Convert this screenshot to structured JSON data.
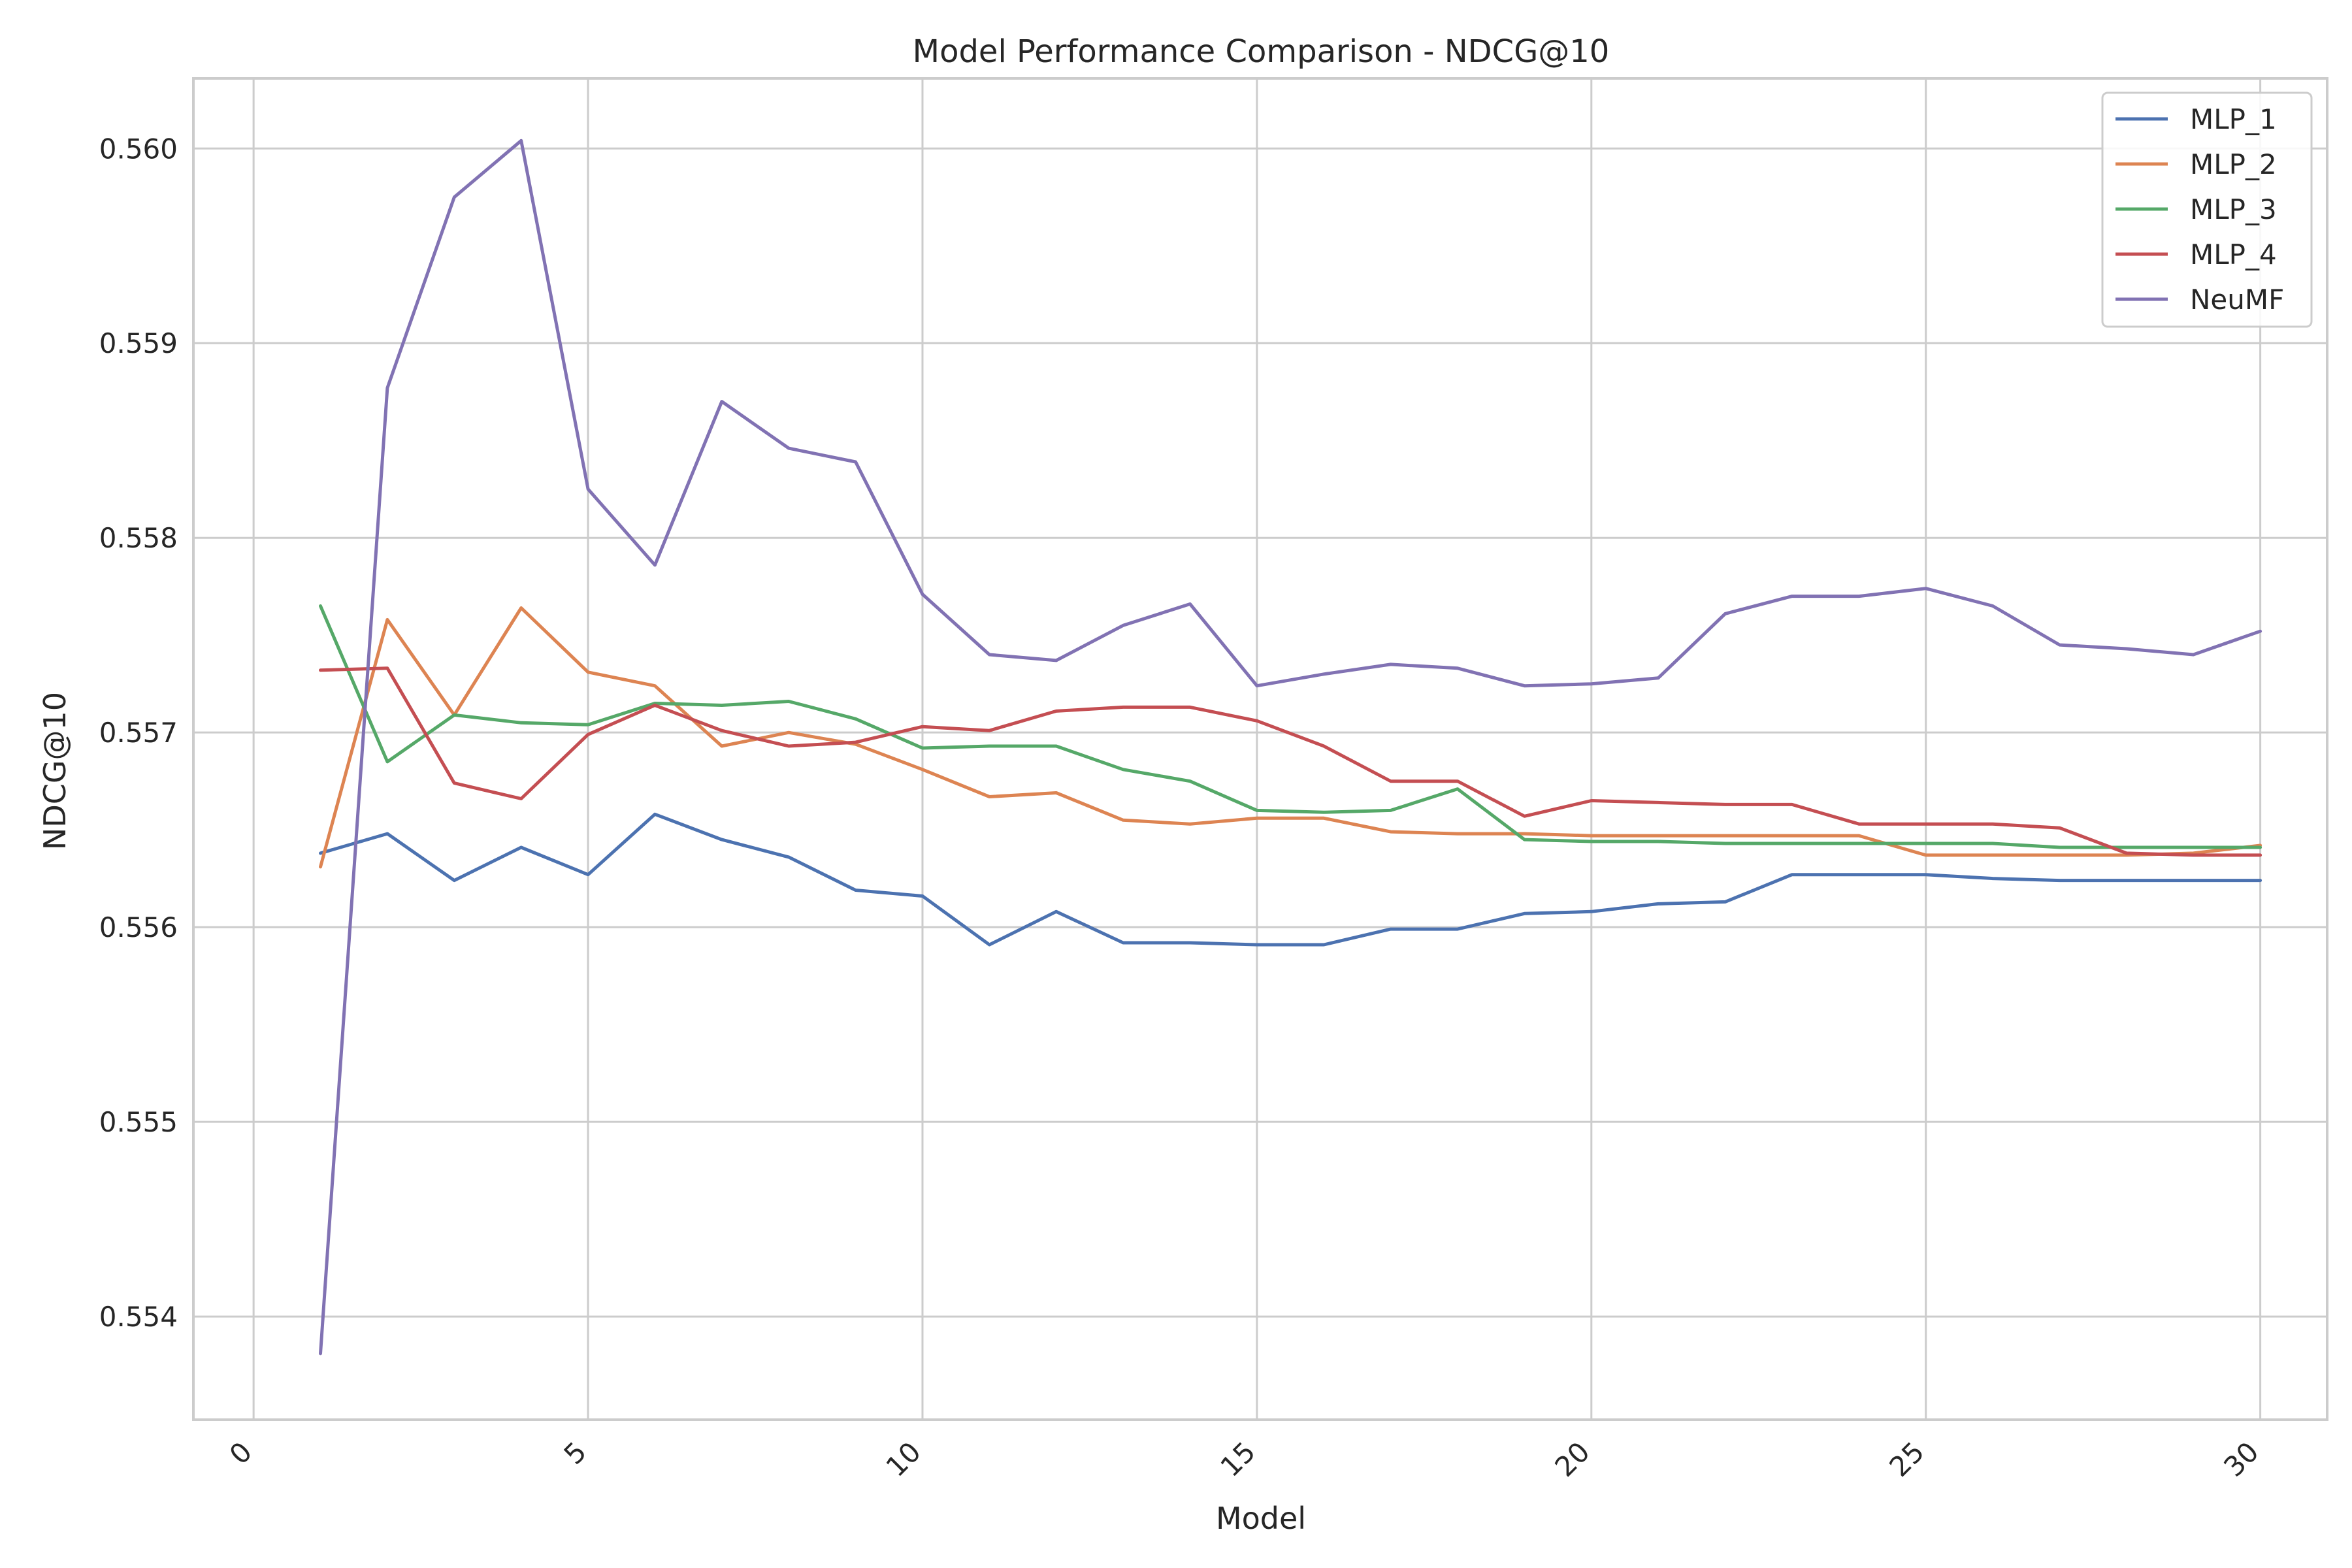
{
  "chart_data": {
    "type": "line",
    "title": "Model Performance Comparison - NDCG@10",
    "xlabel": "Model",
    "ylabel": "NDCG@10",
    "xlim": [
      -0.9,
      31.0
    ],
    "ylim": [
      0.55347,
      0.56036
    ],
    "xticks": [
      0,
      5,
      10,
      15,
      20,
      25,
      30
    ],
    "xtick_labels": [
      "0",
      "5",
      "10",
      "15",
      "20",
      "25",
      "30"
    ],
    "xtick_rotation": 45,
    "yticks": [
      0.554,
      0.555,
      0.556,
      0.557,
      0.558,
      0.559,
      0.56
    ],
    "ytick_labels": [
      "0.554",
      "0.555",
      "0.556",
      "0.557",
      "0.558",
      "0.559",
      "0.560"
    ],
    "grid": true,
    "legend_position": "top-right",
    "x": [
      1,
      2,
      3,
      4,
      5,
      6,
      7,
      8,
      9,
      10,
      11,
      12,
      13,
      14,
      15,
      16,
      17,
      18,
      19,
      20,
      21,
      22,
      23,
      24,
      25,
      26,
      27,
      28,
      29,
      30
    ],
    "series": [
      {
        "name": "MLP_1",
        "color": "#4c72b0",
        "values": [
          0.55638,
          0.55648,
          0.55624,
          0.55641,
          0.55627,
          0.55658,
          0.55645,
          0.55636,
          0.55619,
          0.55616,
          0.55591,
          0.55608,
          0.55592,
          0.55592,
          0.55591,
          0.55591,
          0.55599,
          0.55599,
          0.55607,
          0.55608,
          0.55612,
          0.55613,
          0.55627,
          0.55627,
          0.55627,
          0.55625,
          0.55624,
          0.55624,
          0.55624,
          0.55624
        ]
      },
      {
        "name": "MLP_2",
        "color": "#dd8452",
        "values": [
          0.55631,
          0.55758,
          0.55709,
          0.55764,
          0.55731,
          0.55724,
          0.55693,
          0.557,
          0.55694,
          0.55681,
          0.55667,
          0.55669,
          0.55655,
          0.55653,
          0.55656,
          0.55656,
          0.55649,
          0.55648,
          0.55648,
          0.55647,
          0.55647,
          0.55647,
          0.55647,
          0.55647,
          0.55637,
          0.55637,
          0.55637,
          0.55637,
          0.55638,
          0.55642
        ]
      },
      {
        "name": "MLP_3",
        "color": "#55a868",
        "values": [
          0.55765,
          0.55685,
          0.55709,
          0.55705,
          0.55704,
          0.55715,
          0.55714,
          0.55716,
          0.55707,
          0.55692,
          0.55693,
          0.55693,
          0.55681,
          0.55675,
          0.5566,
          0.55659,
          0.5566,
          0.55671,
          0.55645,
          0.55644,
          0.55644,
          0.55643,
          0.55643,
          0.55643,
          0.55643,
          0.55643,
          0.55641,
          0.55641,
          0.55641,
          0.55641
        ]
      },
      {
        "name": "MLP_4",
        "color": "#c44e52",
        "values": [
          0.55732,
          0.55733,
          0.55674,
          0.55666,
          0.55699,
          0.55714,
          0.55701,
          0.55693,
          0.55695,
          0.55703,
          0.55701,
          0.55711,
          0.55713,
          0.55713,
          0.55706,
          0.55693,
          0.55675,
          0.55675,
          0.55657,
          0.55665,
          0.55664,
          0.55663,
          0.55663,
          0.55653,
          0.55653,
          0.55653,
          0.55651,
          0.55638,
          0.55637,
          0.55637
        ]
      },
      {
        "name": "NeuMF",
        "color": "#8172b3",
        "values": [
          0.55381,
          0.55877,
          0.55975,
          0.56004,
          0.55825,
          0.55786,
          0.5587,
          0.55846,
          0.55839,
          0.55771,
          0.5574,
          0.55737,
          0.55755,
          0.55766,
          0.55724,
          0.5573,
          0.55735,
          0.55733,
          0.55724,
          0.55725,
          0.55728,
          0.55761,
          0.5577,
          0.5577,
          0.55774,
          0.55765,
          0.55745,
          0.55743,
          0.5574,
          0.55752
        ]
      }
    ]
  },
  "colors": {
    "grid": "#cccccc",
    "frame": "#cccccc",
    "text": "#262626",
    "background": "#ffffff"
  }
}
